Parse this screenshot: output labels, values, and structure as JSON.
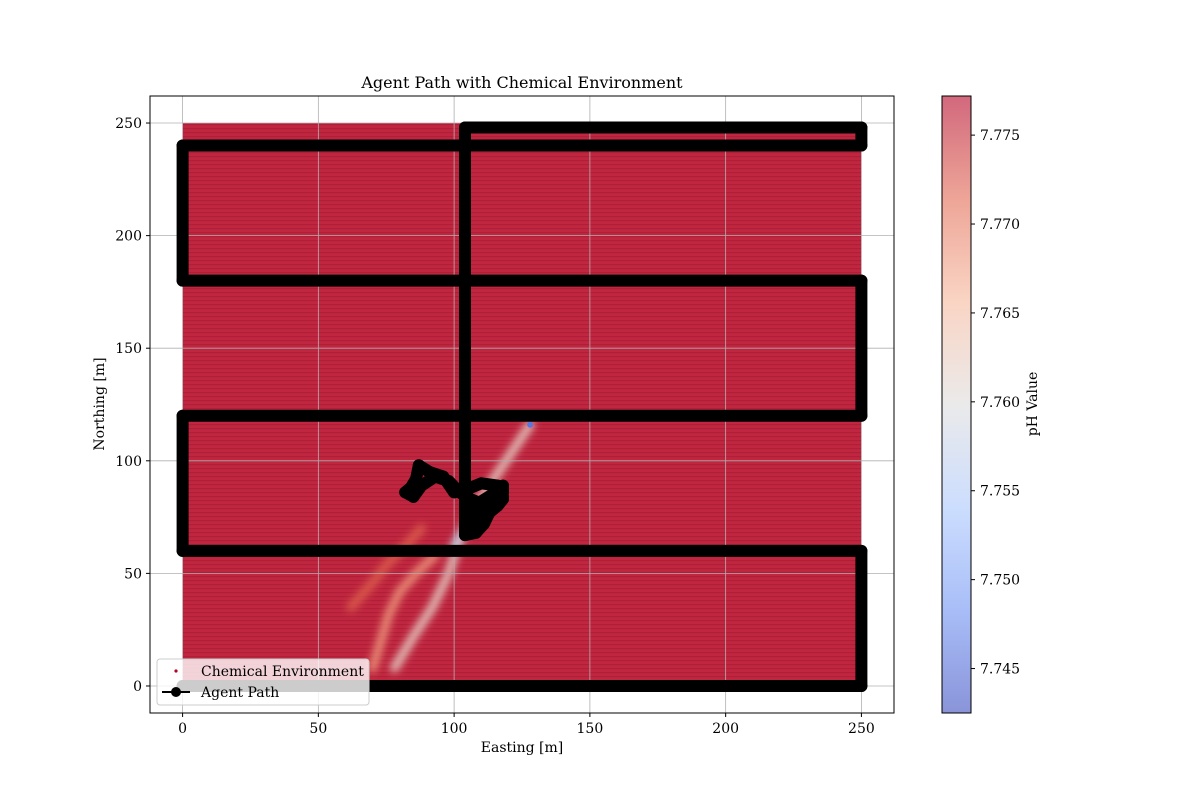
{
  "chart_data": {
    "type": "scatter",
    "title": "Agent Path with Chemical Environment",
    "xlabel": "Easting [m]",
    "ylabel": "Northing [m]",
    "xlim": [
      -12,
      262
    ],
    "ylim": [
      -12,
      262
    ],
    "x_ticks": [
      0,
      50,
      100,
      150,
      200,
      250
    ],
    "y_ticks": [
      0,
      50,
      100,
      150,
      200,
      250
    ],
    "grid": true,
    "legend_position": "lower-left",
    "legend": [
      {
        "label": "Chemical Environment",
        "marker": "dot",
        "color": "#b40426"
      },
      {
        "label": "Agent Path",
        "marker": "line-circle",
        "color": "#000000"
      }
    ],
    "colorbar": {
      "label": "pH Value",
      "vmin": 7.7425,
      "vmax": 7.7772,
      "ticks": [
        7.745,
        7.75,
        7.755,
        7.76,
        7.765,
        7.77,
        7.775
      ],
      "tick_labels": [
        "7.745",
        "7.750",
        "7.755",
        "7.760",
        "7.765",
        "7.770",
        "7.775"
      ],
      "colormap": [
        "#3b4cc0",
        "#6f92f3",
        "#aac7fd",
        "#dddcdc",
        "#f6b89c",
        "#e26952",
        "#b40426"
      ],
      "alpha": 0.6
    },
    "environment": {
      "x_range": [
        0,
        250
      ],
      "y_range": [
        0,
        250
      ],
      "base_value": 7.777
    },
    "plume": [
      {
        "name": "plume-main",
        "points": [
          [
            128,
            116
          ],
          [
            118,
            98
          ],
          [
            108,
            80
          ],
          [
            102,
            65
          ],
          [
            98,
            50
          ],
          [
            92,
            35
          ],
          [
            85,
            22
          ],
          [
            78,
            8
          ]
        ],
        "value": 7.762
      },
      {
        "name": "plume-branch-left",
        "points": [
          [
            93,
            58
          ],
          [
            86,
            50
          ],
          [
            80,
            42
          ],
          [
            76,
            32
          ],
          [
            73,
            20
          ],
          [
            70,
            8
          ]
        ],
        "value": 7.768
      },
      {
        "name": "plume-branch-west",
        "points": [
          [
            88,
            70
          ],
          [
            82,
            62
          ],
          [
            76,
            55
          ],
          [
            70,
            46
          ],
          [
            62,
            35
          ]
        ],
        "value": 7.772
      },
      {
        "name": "plume-core",
        "points": [
          [
            110,
            78
          ],
          [
            104,
            70
          ],
          [
            100,
            62
          ]
        ],
        "value": 7.757
      }
    ],
    "plume_tip": {
      "x": 128,
      "y": 116,
      "value": 7.746
    },
    "agent_path": [
      [
        0,
        0
      ],
      [
        250,
        0
      ],
      [
        250,
        60
      ],
      [
        0,
        60
      ],
      [
        0,
        120
      ],
      [
        250,
        120
      ],
      [
        250,
        180
      ],
      [
        0,
        180
      ],
      [
        0,
        240
      ],
      [
        250,
        240
      ],
      [
        250,
        248
      ],
      [
        104,
        248
      ],
      [
        104,
        70
      ],
      [
        108,
        74
      ],
      [
        112,
        80
      ],
      [
        118,
        84
      ],
      [
        116,
        89
      ],
      [
        110,
        90
      ],
      [
        106,
        88
      ],
      [
        100,
        86
      ],
      [
        96,
        93
      ],
      [
        91,
        95
      ],
      [
        87,
        98
      ],
      [
        86,
        92
      ],
      [
        84,
        88
      ],
      [
        82,
        86
      ],
      [
        85,
        84
      ],
      [
        88,
        89
      ],
      [
        93,
        93
      ],
      [
        98,
        91
      ],
      [
        102,
        86
      ],
      [
        106,
        83
      ],
      [
        110,
        81
      ],
      [
        114,
        84
      ],
      [
        118,
        86
      ],
      [
        118,
        89
      ],
      [
        114,
        85
      ],
      [
        110,
        82
      ],
      [
        107,
        80
      ],
      [
        105,
        76
      ],
      [
        104,
        72
      ],
      [
        104,
        67
      ],
      [
        108,
        68
      ],
      [
        111,
        72
      ],
      [
        113,
        77
      ],
      [
        116,
        80
      ],
      [
        118,
        83
      ]
    ]
  }
}
